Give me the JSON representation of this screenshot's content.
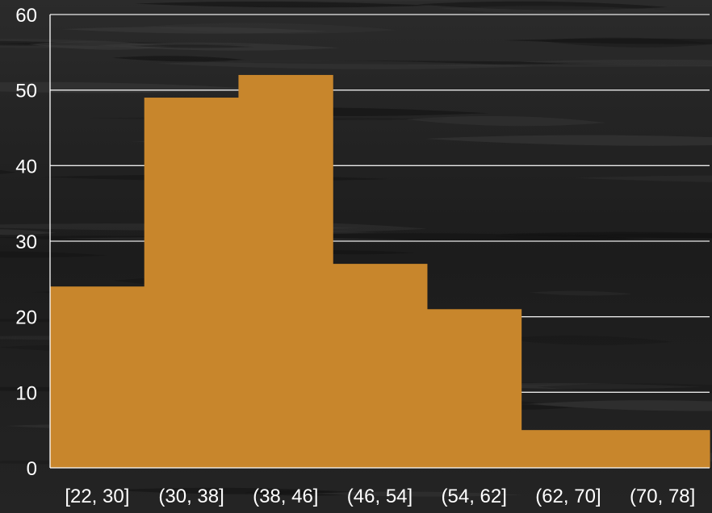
{
  "chart_data": {
    "type": "bar",
    "title": "",
    "xlabel": "",
    "ylabel": "",
    "categories": [
      "[22, 30]",
      "(30, 38]",
      "(38, 46]",
      "(46, 54]",
      "(54, 62]",
      "(62, 70]",
      "(70, 78]"
    ],
    "values": [
      24,
      49,
      52,
      27,
      21,
      5,
      5
    ],
    "ylim": [
      0,
      60
    ],
    "yticks": [
      "0",
      "10",
      "20",
      "30",
      "40",
      "50",
      "60"
    ],
    "grid": true,
    "legend": "none",
    "bar_gap": "none (histogram)"
  },
  "colors": {
    "bar": "#c8862c",
    "text": "#ffffff",
    "grid": "#ffffff",
    "background": "#1e1e1e"
  }
}
